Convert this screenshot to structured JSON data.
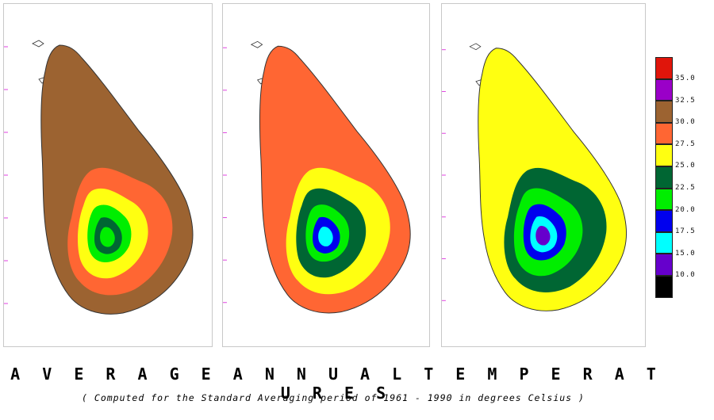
{
  "title": "A V E R A G E   A N N U A L  T E M P E R A T U R E S",
  "subtitle": "( Computed  for the Standard Averaging period  of 1961 - 1990 in degrees Celsius )",
  "legend": {
    "entries": [
      {
        "label": "35.0",
        "color": "#e0150b"
      },
      {
        "label": "32.5",
        "color": "#9a00c8"
      },
      {
        "label": "30.0",
        "color": "#9c6331"
      },
      {
        "label": "27.5",
        "color": "#ff6633"
      },
      {
        "label": "25.0",
        "color": "#ffff11"
      },
      {
        "label": "22.5",
        "color": "#006633"
      },
      {
        "label": "20.0",
        "color": "#00ee00"
      },
      {
        "label": "17.5",
        "color": "#0000ee"
      },
      {
        "label": "15.0",
        "color": "#00ffff"
      },
      {
        "label": "10.0",
        "color": "#6600cc"
      },
      {
        "label": "",
        "color": "#000000"
      }
    ]
  },
  "maps": [
    {
      "layers": [
        "#9c6331",
        "#ff6633",
        "#ffff11",
        "#00ee00",
        "#006633",
        "#00ee00"
      ]
    },
    {
      "layers": [
        "#ff6633",
        "#ffff11",
        "#006633",
        "#00ee00",
        "#0000ee",
        "#00ffff"
      ]
    },
    {
      "layers": [
        "#ffff11",
        "#006633",
        "#00ee00",
        "#0000ee",
        "#00ffff",
        "#6600cc"
      ]
    }
  ]
}
